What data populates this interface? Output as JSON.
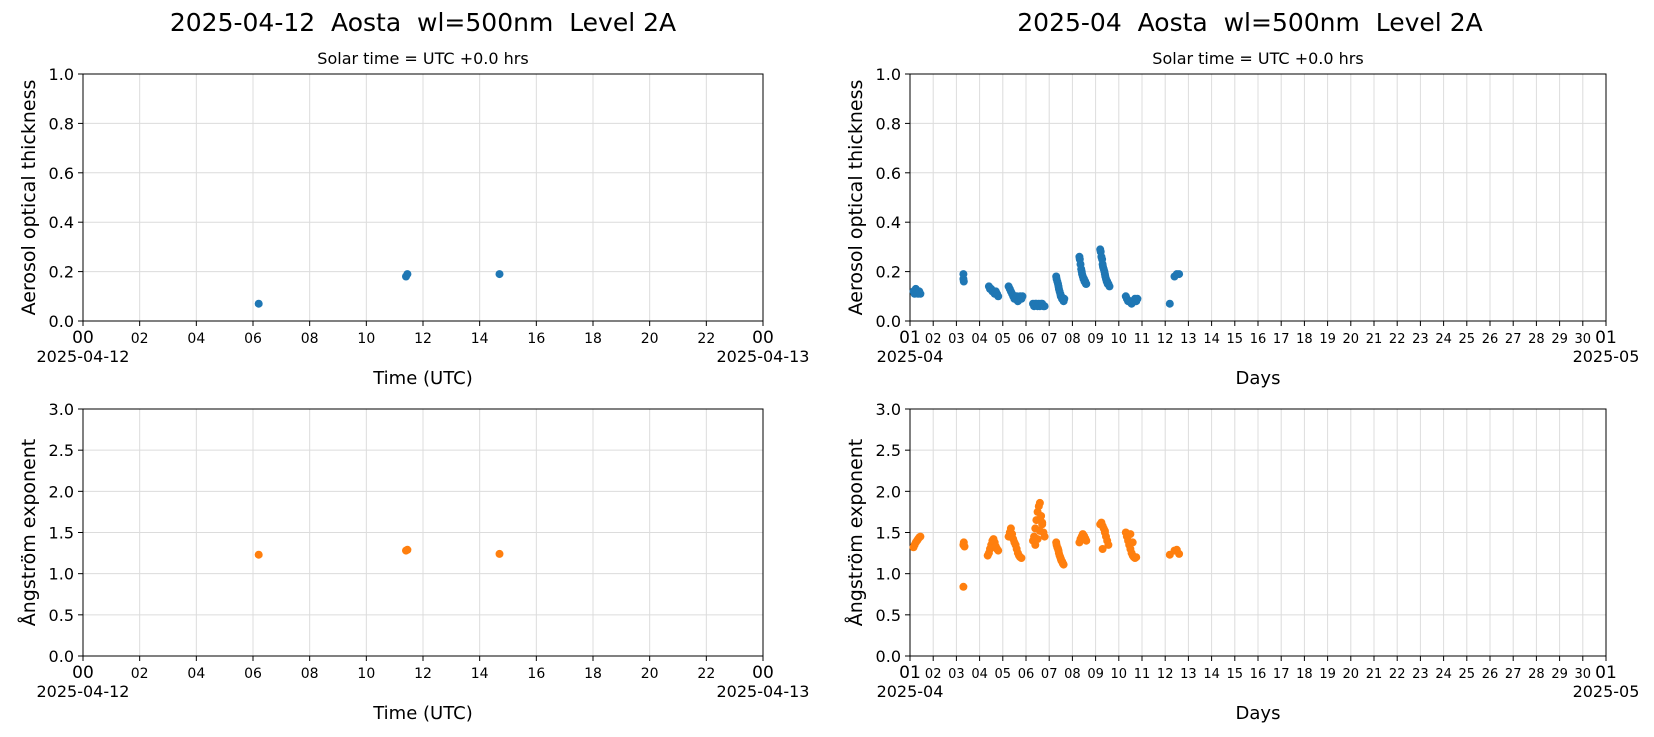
{
  "panels": {
    "left_title": "2025-04-12  Aosta  wl=500nm  Level 2A",
    "right_title": "2025-04  Aosta  wl=500nm  Level 2A"
  },
  "chart_data": [
    {
      "type": "scatter",
      "title": "2025-04-12  Aosta  wl=500nm  Level 2A",
      "subtitle": "Solar time = UTC +0.0 hrs",
      "xlabel": "Time (UTC)",
      "ylabel": "Aerosol optical thickness",
      "ylim": [
        0,
        1.0
      ],
      "yticks": [
        "0.0",
        "0.2",
        "0.4",
        "0.6",
        "0.8",
        "1.0"
      ],
      "xlim": [
        0,
        24
      ],
      "xticks": [
        "00",
        "02",
        "04",
        "06",
        "08",
        "10",
        "12",
        "14",
        "16",
        "18",
        "20",
        "22",
        "00"
      ],
      "x_start_label": "2025-04-12",
      "x_end_label": "2025-04-13",
      "grid": true,
      "color": "#1f77b4",
      "series": [
        {
          "x": [
            6.2,
            11.4,
            11.45,
            14.7
          ],
          "y": [
            0.07,
            0.18,
            0.19,
            0.19
          ]
        }
      ]
    },
    {
      "type": "scatter",
      "title": "2025-04  Aosta  wl=500nm  Level 2A",
      "subtitle": "Solar time = UTC +0.0 hrs",
      "xlabel": "Days",
      "ylabel": "Aerosol optical thickness",
      "ylim": [
        0,
        1.0
      ],
      "yticks": [
        "0.0",
        "0.2",
        "0.4",
        "0.6",
        "0.8",
        "1.0"
      ],
      "xlim": [
        1,
        31
      ],
      "xticks": [
        "01",
        "02",
        "03",
        "04",
        "05",
        "06",
        "07",
        "08",
        "09",
        "10",
        "11",
        "12",
        "13",
        "14",
        "15",
        "16",
        "17",
        "18",
        "19",
        "20",
        "21",
        "22",
        "23",
        "24",
        "25",
        "26",
        "27",
        "28",
        "29",
        "30",
        "01"
      ],
      "x_start_label": "2025-04",
      "x_end_label": "2025-05",
      "grid": true,
      "color": "#1f77b4",
      "series": [
        {
          "x": [
            1.15,
            1.2,
            1.25,
            1.3,
            1.35,
            1.4,
            1.45,
            3.3,
            3.3,
            3.32,
            4.4,
            4.45,
            4.5,
            4.55,
            4.6,
            4.65,
            4.7,
            4.75,
            4.8,
            5.25,
            5.3,
            5.35,
            5.4,
            5.45,
            5.5,
            5.55,
            5.6,
            5.65,
            5.7,
            5.75,
            5.8,
            5.85,
            6.3,
            6.35,
            6.4,
            6.45,
            6.5,
            6.55,
            6.6,
            6.65,
            6.7,
            6.75,
            6.8,
            7.3,
            7.32,
            7.35,
            7.38,
            7.4,
            7.42,
            7.45,
            7.48,
            7.5,
            7.52,
            7.55,
            7.58,
            7.6,
            7.62,
            7.65,
            8.3,
            8.32,
            8.35,
            8.38,
            8.4,
            8.42,
            8.45,
            8.48,
            8.5,
            8.52,
            8.55,
            8.58,
            8.6,
            9.2,
            9.22,
            9.25,
            9.28,
            9.3,
            9.32,
            9.35,
            9.38,
            9.4,
            9.42,
            9.45,
            9.48,
            9.5,
            9.52,
            9.55,
            9.6,
            10.3,
            10.35,
            10.4,
            10.45,
            10.5,
            10.55,
            10.6,
            10.65,
            10.7,
            10.75,
            10.8,
            12.2,
            12.4,
            12.5,
            12.6
          ],
          "y": [
            0.12,
            0.11,
            0.13,
            0.12,
            0.11,
            0.12,
            0.11,
            0.19,
            0.17,
            0.16,
            0.14,
            0.13,
            0.13,
            0.12,
            0.12,
            0.11,
            0.12,
            0.11,
            0.1,
            0.14,
            0.13,
            0.12,
            0.11,
            0.1,
            0.09,
            0.09,
            0.1,
            0.08,
            0.09,
            0.1,
            0.09,
            0.1,
            0.07,
            0.06,
            0.07,
            0.07,
            0.06,
            0.07,
            0.06,
            0.07,
            0.07,
            0.06,
            0.06,
            0.18,
            0.17,
            0.16,
            0.15,
            0.14,
            0.13,
            0.12,
            0.11,
            0.1,
            0.1,
            0.09,
            0.09,
            0.09,
            0.08,
            0.09,
            0.26,
            0.25,
            0.23,
            0.21,
            0.2,
            0.19,
            0.18,
            0.17,
            0.17,
            0.16,
            0.16,
            0.15,
            0.15,
            0.29,
            0.28,
            0.26,
            0.25,
            0.23,
            0.22,
            0.21,
            0.2,
            0.19,
            0.18,
            0.17,
            0.16,
            0.16,
            0.15,
            0.15,
            0.14,
            0.1,
            0.09,
            0.08,
            0.08,
            0.08,
            0.07,
            0.08,
            0.08,
            0.09,
            0.08,
            0.09,
            0.07,
            0.18,
            0.19,
            0.19
          ]
        }
      ]
    },
    {
      "type": "scatter",
      "title": "",
      "xlabel": "Time (UTC)",
      "ylabel": "Ångström exponent",
      "ylim": [
        0,
        3.0
      ],
      "yticks": [
        "0.0",
        "0.5",
        "1.0",
        "1.5",
        "2.0",
        "2.5",
        "3.0"
      ],
      "xlim": [
        0,
        24
      ],
      "xticks": [
        "00",
        "02",
        "04",
        "06",
        "08",
        "10",
        "12",
        "14",
        "16",
        "18",
        "20",
        "22",
        "00"
      ],
      "x_start_label": "2025-04-12",
      "x_end_label": "2025-04-13",
      "grid": true,
      "color": "#ff7f0e",
      "series": [
        {
          "x": [
            6.2,
            11.4,
            11.45,
            14.7
          ],
          "y": [
            1.23,
            1.28,
            1.29,
            1.24
          ]
        }
      ]
    },
    {
      "type": "scatter",
      "title": "",
      "xlabel": "Days",
      "ylabel": "Ångström exponent",
      "ylim": [
        0,
        3.0
      ],
      "yticks": [
        "0.0",
        "0.5",
        "1.0",
        "1.5",
        "2.0",
        "2.5",
        "3.0"
      ],
      "xlim": [
        1,
        31
      ],
      "xticks": [
        "01",
        "02",
        "03",
        "04",
        "05",
        "06",
        "07",
        "08",
        "09",
        "10",
        "11",
        "12",
        "13",
        "14",
        "15",
        "16",
        "17",
        "18",
        "19",
        "20",
        "21",
        "22",
        "23",
        "24",
        "25",
        "26",
        "27",
        "28",
        "29",
        "30",
        "01"
      ],
      "x_start_label": "2025-04",
      "x_end_label": "2025-05",
      "grid": true,
      "color": "#ff7f0e",
      "series": [
        {
          "x": [
            1.15,
            1.2,
            1.25,
            1.3,
            1.35,
            1.4,
            1.45,
            3.3,
            3.32,
            3.35,
            3.3,
            4.35,
            4.4,
            4.45,
            4.5,
            4.55,
            4.6,
            4.65,
            4.7,
            4.75,
            4.8,
            5.25,
            5.3,
            5.35,
            5.4,
            5.45,
            5.5,
            5.55,
            5.6,
            5.65,
            5.7,
            5.75,
            5.8,
            6.3,
            6.35,
            6.4,
            6.45,
            6.5,
            6.55,
            6.6,
            6.65,
            6.7,
            6.75,
            6.8,
            6.4,
            6.5,
            6.6,
            6.7,
            7.3,
            7.32,
            7.35,
            7.38,
            7.4,
            7.42,
            7.45,
            7.48,
            7.5,
            7.52,
            7.55,
            7.58,
            7.6,
            7.62,
            8.3,
            8.35,
            8.4,
            8.45,
            8.5,
            8.55,
            8.6,
            9.2,
            9.25,
            9.3,
            9.35,
            9.4,
            9.45,
            9.5,
            9.55,
            9.3,
            9.4,
            10.3,
            10.35,
            10.4,
            10.45,
            10.5,
            10.55,
            10.6,
            10.65,
            10.7,
            10.75,
            10.5,
            10.6,
            12.2,
            12.4,
            12.5,
            12.6
          ],
          "y": [
            1.32,
            1.35,
            1.38,
            1.4,
            1.42,
            1.44,
            1.45,
            1.35,
            1.38,
            1.33,
            0.84,
            1.22,
            1.25,
            1.3,
            1.35,
            1.4,
            1.42,
            1.38,
            1.33,
            1.3,
            1.28,
            1.45,
            1.5,
            1.55,
            1.48,
            1.42,
            1.38,
            1.35,
            1.3,
            1.25,
            1.22,
            1.2,
            1.19,
            1.4,
            1.45,
            1.55,
            1.65,
            1.75,
            1.82,
            1.86,
            1.7,
            1.6,
            1.5,
            1.45,
            1.35,
            1.42,
            1.52,
            1.62,
            1.38,
            1.35,
            1.32,
            1.3,
            1.28,
            1.25,
            1.22,
            1.2,
            1.18,
            1.16,
            1.15,
            1.13,
            1.12,
            1.11,
            1.38,
            1.42,
            1.45,
            1.48,
            1.46,
            1.43,
            1.4,
            1.6,
            1.62,
            1.58,
            1.55,
            1.5,
            1.45,
            1.4,
            1.35,
            1.3,
            1.52,
            1.5,
            1.45,
            1.4,
            1.35,
            1.3,
            1.25,
            1.22,
            1.2,
            1.19,
            1.2,
            1.48,
            1.38,
            1.23,
            1.28,
            1.29,
            1.24
          ]
        }
      ]
    }
  ]
}
